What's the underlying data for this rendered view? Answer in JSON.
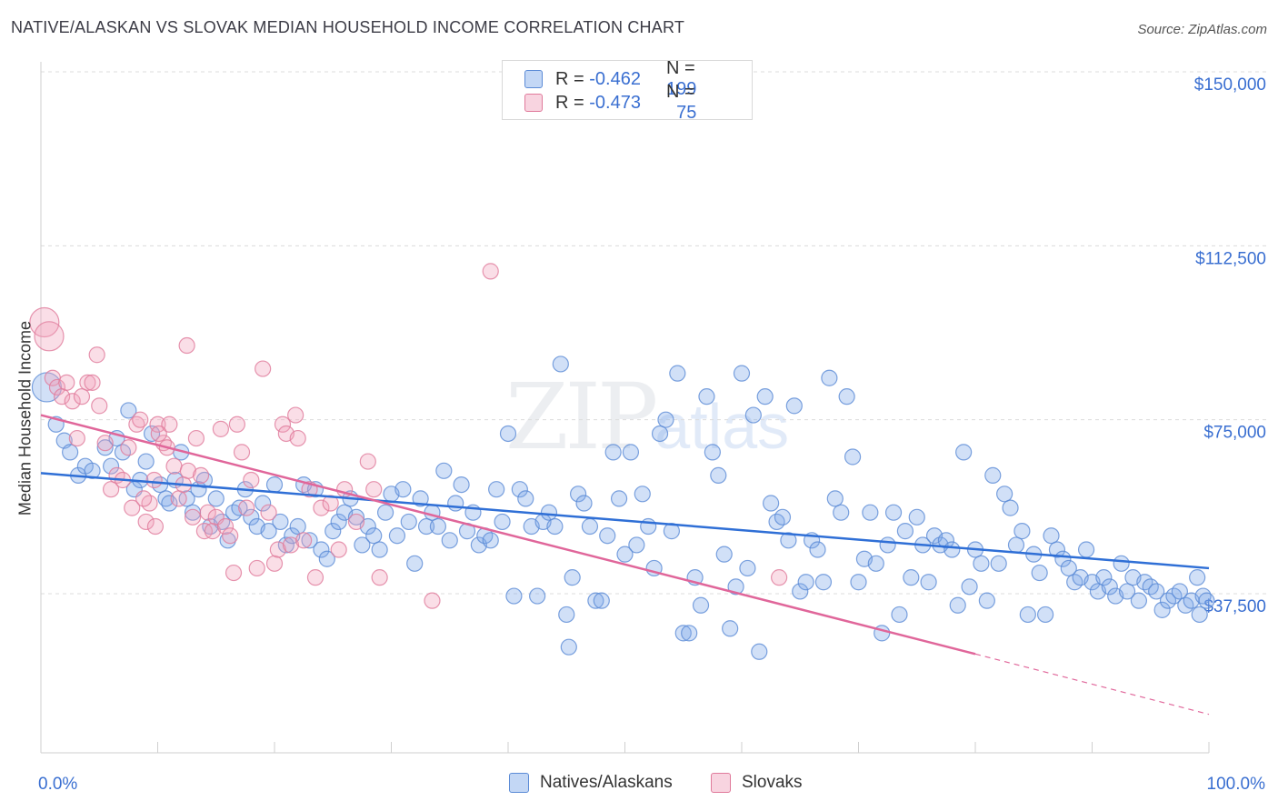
{
  "title": "NATIVE/ALASKAN VS SLOVAK MEDIAN HOUSEHOLD INCOME CORRELATION CHART",
  "source": "Source: ZipAtlas.com",
  "watermark": {
    "main": "ZIP",
    "sub": "atlas"
  },
  "legend": {
    "rows": [
      {
        "r_label": "R =",
        "r_value": "-0.462",
        "n_label": "N =",
        "n_value": "199",
        "color": "#7aa6e8"
      },
      {
        "r_label": "R =",
        "r_value": "-0.473",
        "n_label": "N =",
        "n_value": "75",
        "color": "#f0a0bb"
      }
    ]
  },
  "bottom_legend": {
    "series1": "Natives/Alaskans",
    "series2": "Slovaks"
  },
  "x_axis": {
    "min_label": "0.0%",
    "max_label": "100.0%"
  },
  "chart_data": {
    "type": "scatter",
    "title": "NATIVE/ALASKAN VS SLOVAK MEDIAN HOUSEHOLD INCOME CORRELATION CHART",
    "xlabel": "",
    "ylabel": "Median Household Income",
    "xlim": [
      0,
      100
    ],
    "ylim": [
      0,
      155000
    ],
    "y_ticks": [
      {
        "value": 37500,
        "label": "$37,500"
      },
      {
        "value": 75000,
        "label": "$75,000"
      },
      {
        "value": 112500,
        "label": "$112,500"
      },
      {
        "value": 150000,
        "label": "$150,000"
      }
    ],
    "x_ticks": [
      0,
      10,
      20,
      30,
      40,
      50,
      60,
      70,
      80,
      90,
      100
    ],
    "grid": true,
    "legend_position": "top-center",
    "series": [
      {
        "name": "Natives/Alaskans",
        "color": "#7aa6e8",
        "stroke": "#5b8bd6",
        "trend": {
          "x0": 0,
          "y0": 63500,
          "x1": 100,
          "y1": 43000
        },
        "points": [
          [
            0.5,
            82000
          ],
          [
            1.3,
            74000
          ],
          [
            2,
            70500
          ],
          [
            2.5,
            68000
          ],
          [
            3.2,
            63000
          ],
          [
            3.8,
            65000
          ],
          [
            4.4,
            64000
          ],
          [
            5.5,
            69000
          ],
          [
            6,
            65000
          ],
          [
            6.5,
            71000
          ],
          [
            7,
            68000
          ],
          [
            7.5,
            77000
          ],
          [
            8,
            60000
          ],
          [
            8.5,
            62000
          ],
          [
            9,
            66000
          ],
          [
            9.5,
            72000
          ],
          [
            10.2,
            61000
          ],
          [
            10.7,
            58000
          ],
          [
            11,
            57000
          ],
          [
            11.5,
            62000
          ],
          [
            12,
            68000
          ],
          [
            12.5,
            58000
          ],
          [
            13,
            55000
          ],
          [
            13.5,
            60000
          ],
          [
            14,
            62000
          ],
          [
            14.5,
            52000
          ],
          [
            15,
            58000
          ],
          [
            15.5,
            53000
          ],
          [
            16,
            49000
          ],
          [
            16.5,
            55000
          ],
          [
            17,
            56000
          ],
          [
            17.5,
            60000
          ],
          [
            18,
            54000
          ],
          [
            18.5,
            52000
          ],
          [
            19,
            57000
          ],
          [
            19.5,
            51000
          ],
          [
            20,
            61000
          ],
          [
            20.5,
            53000
          ],
          [
            21,
            48000
          ],
          [
            21.5,
            50000
          ],
          [
            22,
            52000
          ],
          [
            22.5,
            61000
          ],
          [
            23,
            49000
          ],
          [
            23.5,
            60000
          ],
          [
            24,
            47000
          ],
          [
            24.5,
            45000
          ],
          [
            25,
            51000
          ],
          [
            25.5,
            53000
          ],
          [
            26,
            55000
          ],
          [
            26.5,
            58000
          ],
          [
            27,
            54000
          ],
          [
            27.5,
            48000
          ],
          [
            28,
            52000
          ],
          [
            28.5,
            50000
          ],
          [
            29,
            47000
          ],
          [
            29.5,
            55000
          ],
          [
            30,
            59000
          ],
          [
            30.5,
            50000
          ],
          [
            31,
            60000
          ],
          [
            31.5,
            53000
          ],
          [
            32,
            44000
          ],
          [
            32.5,
            58000
          ],
          [
            33,
            52000
          ],
          [
            33.5,
            55000
          ],
          [
            34,
            52000
          ],
          [
            34.5,
            64000
          ],
          [
            35,
            49000
          ],
          [
            35.5,
            57000
          ],
          [
            36,
            61000
          ],
          [
            36.5,
            51000
          ],
          [
            37,
            55000
          ],
          [
            37.5,
            48000
          ],
          [
            38,
            50000
          ],
          [
            38.5,
            49000
          ],
          [
            39,
            60000
          ],
          [
            39.5,
            53000
          ],
          [
            40,
            72000
          ],
          [
            40.5,
            37000
          ],
          [
            41,
            60000
          ],
          [
            41.5,
            58000
          ],
          [
            42,
            52000
          ],
          [
            42.5,
            37000
          ],
          [
            43,
            53000
          ],
          [
            43.5,
            55000
          ],
          [
            44,
            52000
          ],
          [
            44.5,
            87000
          ],
          [
            45,
            33000
          ],
          [
            45.2,
            26000
          ],
          [
            45.5,
            41000
          ],
          [
            46,
            59000
          ],
          [
            46.5,
            57000
          ],
          [
            47,
            52000
          ],
          [
            47.5,
            36000
          ],
          [
            48,
            36000
          ],
          [
            48.5,
            50000
          ],
          [
            49,
            68000
          ],
          [
            49.5,
            58000
          ],
          [
            50,
            46000
          ],
          [
            50.5,
            68000
          ],
          [
            51,
            48000
          ],
          [
            51.5,
            59000
          ],
          [
            52,
            52000
          ],
          [
            52.5,
            43000
          ],
          [
            53,
            72000
          ],
          [
            53.5,
            75000
          ],
          [
            54,
            51000
          ],
          [
            54.5,
            85000
          ],
          [
            55,
            29000
          ],
          [
            55.5,
            29000
          ],
          [
            56,
            41000
          ],
          [
            56.5,
            35000
          ],
          [
            57,
            80000
          ],
          [
            57.5,
            68000
          ],
          [
            58,
            63000
          ],
          [
            58.5,
            46000
          ],
          [
            59,
            30000
          ],
          [
            59.5,
            39000
          ],
          [
            60,
            85000
          ],
          [
            60.5,
            43000
          ],
          [
            61,
            76000
          ],
          [
            61.5,
            25000
          ],
          [
            62,
            80000
          ],
          [
            62.5,
            57000
          ],
          [
            63,
            53000
          ],
          [
            63.5,
            54000
          ],
          [
            64,
            49000
          ],
          [
            64.5,
            78000
          ],
          [
            65,
            38000
          ],
          [
            65.5,
            40000
          ],
          [
            66,
            49000
          ],
          [
            66.5,
            47000
          ],
          [
            67,
            40000
          ],
          [
            67.5,
            84000
          ],
          [
            68,
            58000
          ],
          [
            68.5,
            55000
          ],
          [
            69,
            80000
          ],
          [
            69.5,
            67000
          ],
          [
            70,
            40000
          ],
          [
            70.5,
            45000
          ],
          [
            71,
            55000
          ],
          [
            71.5,
            44000
          ],
          [
            72,
            29000
          ],
          [
            72.5,
            48000
          ],
          [
            73,
            55000
          ],
          [
            73.5,
            33000
          ],
          [
            74,
            51000
          ],
          [
            74.5,
            41000
          ],
          [
            75,
            54000
          ],
          [
            75.5,
            48000
          ],
          [
            76,
            40000
          ],
          [
            76.5,
            50000
          ],
          [
            77,
            48000
          ],
          [
            77.5,
            49000
          ],
          [
            78,
            47000
          ],
          [
            78.5,
            35000
          ],
          [
            79,
            68000
          ],
          [
            79.5,
            39000
          ],
          [
            80,
            47000
          ],
          [
            80.5,
            44000
          ],
          [
            81,
            36000
          ],
          [
            81.5,
            63000
          ],
          [
            82,
            44000
          ],
          [
            82.5,
            59000
          ],
          [
            83,
            56000
          ],
          [
            83.5,
            48000
          ],
          [
            84,
            51000
          ],
          [
            84.5,
            33000
          ],
          [
            85,
            46000
          ],
          [
            85.5,
            42000
          ],
          [
            86,
            33000
          ],
          [
            86.5,
            50000
          ],
          [
            87,
            47000
          ],
          [
            87.5,
            45000
          ],
          [
            88,
            43000
          ],
          [
            88.5,
            40000
          ],
          [
            89,
            41000
          ],
          [
            89.5,
            47000
          ],
          [
            90,
            40000
          ],
          [
            90.5,
            38000
          ],
          [
            91,
            41000
          ],
          [
            91.5,
            39000
          ],
          [
            92,
            37000
          ],
          [
            92.5,
            44000
          ],
          [
            93,
            38000
          ],
          [
            93.5,
            41000
          ],
          [
            94,
            36000
          ],
          [
            94.5,
            40000
          ],
          [
            95,
            39000
          ],
          [
            95.5,
            38000
          ],
          [
            96,
            34000
          ],
          [
            96.5,
            36000
          ],
          [
            97,
            37000
          ],
          [
            97.5,
            38000
          ],
          [
            98,
            35000
          ],
          [
            98.5,
            36000
          ],
          [
            99,
            41000
          ],
          [
            99.2,
            33000
          ],
          [
            99.5,
            37000
          ],
          [
            99.8,
            36000
          ]
        ]
      },
      {
        "name": "Slovaks",
        "color": "#f0a0bb",
        "stroke": "#e07a9b",
        "trend": {
          "x0": 0,
          "y0": 76000,
          "x1": 80,
          "y1": 24500
        },
        "trend_dashed": {
          "x0": 80,
          "y0": 24500,
          "x1": 100,
          "y1": 11500
        },
        "points": [
          [
            0.3,
            96000
          ],
          [
            0.7,
            93000
          ],
          [
            1,
            84000
          ],
          [
            1.4,
            82000
          ],
          [
            1.8,
            80000
          ],
          [
            2.2,
            83000
          ],
          [
            2.7,
            79000
          ],
          [
            3.1,
            71000
          ],
          [
            3.5,
            80000
          ],
          [
            4,
            83000
          ],
          [
            4.4,
            83000
          ],
          [
            4.8,
            89000
          ],
          [
            5,
            78000
          ],
          [
            5.5,
            70000
          ],
          [
            6,
            60000
          ],
          [
            6.5,
            63000
          ],
          [
            7,
            62000
          ],
          [
            7.5,
            69000
          ],
          [
            7.8,
            56000
          ],
          [
            8.2,
            74000
          ],
          [
            8.5,
            75000
          ],
          [
            9,
            53000
          ],
          [
            9.3,
            57000
          ],
          [
            9.7,
            62000
          ],
          [
            10,
            74000
          ],
          [
            10.5,
            70000
          ],
          [
            10.8,
            69000
          ],
          [
            11,
            74000
          ],
          [
            11.4,
            65000
          ],
          [
            11.8,
            58000
          ],
          [
            12.2,
            61000
          ],
          [
            12.6,
            64000
          ],
          [
            13,
            54000
          ],
          [
            13.3,
            71000
          ],
          [
            13.7,
            63000
          ],
          [
            14,
            51000
          ],
          [
            14.3,
            55000
          ],
          [
            14.7,
            51000
          ],
          [
            15,
            54000
          ],
          [
            15.4,
            73000
          ],
          [
            15.8,
            52000
          ],
          [
            16.2,
            50000
          ],
          [
            16.5,
            42000
          ],
          [
            16.8,
            74000
          ],
          [
            17.2,
            68000
          ],
          [
            17.6,
            56000
          ],
          [
            18,
            62000
          ],
          [
            18.5,
            43000
          ],
          [
            19,
            86000
          ],
          [
            19.5,
            55000
          ],
          [
            20,
            44000
          ],
          [
            20.3,
            47000
          ],
          [
            20.7,
            74000
          ],
          [
            21,
            72000
          ],
          [
            21.4,
            48000
          ],
          [
            21.8,
            76000
          ],
          [
            22,
            71000
          ],
          [
            22.5,
            49000
          ],
          [
            23,
            60000
          ],
          [
            23.5,
            41000
          ],
          [
            24,
            56000
          ],
          [
            24.8,
            57000
          ],
          [
            25.5,
            47000
          ],
          [
            26,
            60000
          ],
          [
            27,
            53000
          ],
          [
            28,
            66000
          ],
          [
            28.5,
            60000
          ],
          [
            29,
            41000
          ],
          [
            33.5,
            36000
          ],
          [
            38.5,
            107000
          ],
          [
            12.5,
            91000
          ],
          [
            9.8,
            52000
          ],
          [
            8.8,
            58000
          ],
          [
            10.1,
            72000
          ],
          [
            63.2,
            41000
          ]
        ]
      }
    ]
  }
}
